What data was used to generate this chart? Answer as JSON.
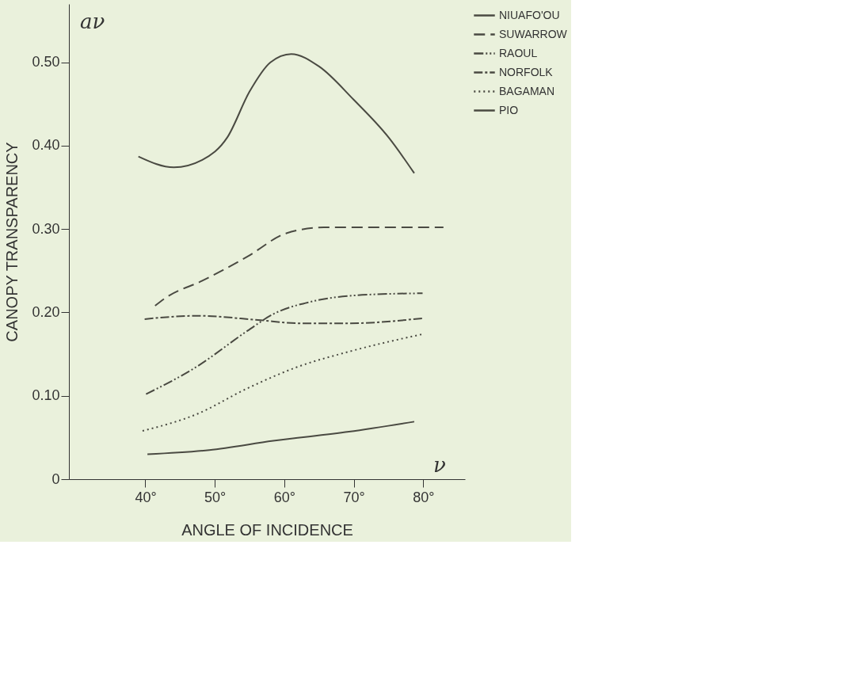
{
  "chart_data": {
    "type": "line",
    "xlabel": "ANGLE OF INCIDENCE",
    "ylabel": "CANOPY TRANSPARENCY",
    "annotations": [
      "aν",
      "ν"
    ],
    "xlim": [
      29,
      86
    ],
    "ylim": [
      0,
      0.57
    ],
    "xticks": [
      {
        "value": 40,
        "label": "40°"
      },
      {
        "value": 50,
        "label": "50°"
      },
      {
        "value": 60,
        "label": "60°"
      },
      {
        "value": 70,
        "label": "70°"
      },
      {
        "value": 80,
        "label": "80°"
      }
    ],
    "yticks": [
      {
        "value": 0,
        "label": "0"
      },
      {
        "value": 0.1,
        "label": "0.10"
      },
      {
        "value": 0.2,
        "label": "0.20"
      },
      {
        "value": 0.3,
        "label": "0.30"
      },
      {
        "value": 0.4,
        "label": "0.40"
      },
      {
        "value": 0.5,
        "label": "0.50"
      }
    ],
    "grid": false,
    "legend": "top right",
    "marker": "none",
    "series": [
      {
        "name": "NIUAFO'OU",
        "color": "#4a4a42",
        "line_style": "solid",
        "x": [
          39,
          44.1,
          48.2,
          51.8,
          55,
          58,
          61,
          65,
          70,
          75,
          78.7
        ],
        "values": [
          0.387,
          0.374,
          0.383,
          0.41,
          0.465,
          0.5,
          0.51,
          0.495,
          0.455,
          0.41,
          0.367
        ]
      },
      {
        "name": "SUWARROW",
        "color": "#4a4a42",
        "line_style": "dashed",
        "x": [
          41.4,
          43,
          48.2,
          54.7,
          60.3,
          65.7,
          73,
          82.9
        ],
        "values": [
          0.208,
          0.218,
          0.238,
          0.267,
          0.295,
          0.302,
          0.302,
          0.302
        ]
      },
      {
        "name": "RAOUL",
        "color": "#4a4a42",
        "line_style": "dashdotdot",
        "x": [
          40.1,
          47.4,
          54.7,
          58.4,
          63.9,
          71.2,
          79.9
        ],
        "values": [
          0.102,
          0.135,
          0.178,
          0.198,
          0.213,
          0.221,
          0.223
        ]
      },
      {
        "name": "NORFOLK",
        "color": "#4a4a42",
        "line_style": "dashdot",
        "x": [
          39.9,
          47.4,
          56.2,
          62,
          69.3,
          79.9
        ],
        "values": [
          0.192,
          0.196,
          0.191,
          0.187,
          0.187,
          0.193
        ]
      },
      {
        "name": "BAGAMAN",
        "color": "#4a4a42",
        "line_style": "dotted",
        "x": [
          39.6,
          47.4,
          54.7,
          62,
          69.3,
          79.9
        ],
        "values": [
          0.058,
          0.078,
          0.109,
          0.135,
          0.153,
          0.174
        ]
      },
      {
        "name": "PIO",
        "color": "#4a4a42",
        "line_style": "solid",
        "x": [
          40.3,
          49.2,
          58.4,
          69.3,
          78.7
        ],
        "values": [
          0.03,
          0.035,
          0.046,
          0.057,
          0.069
        ]
      }
    ]
  }
}
